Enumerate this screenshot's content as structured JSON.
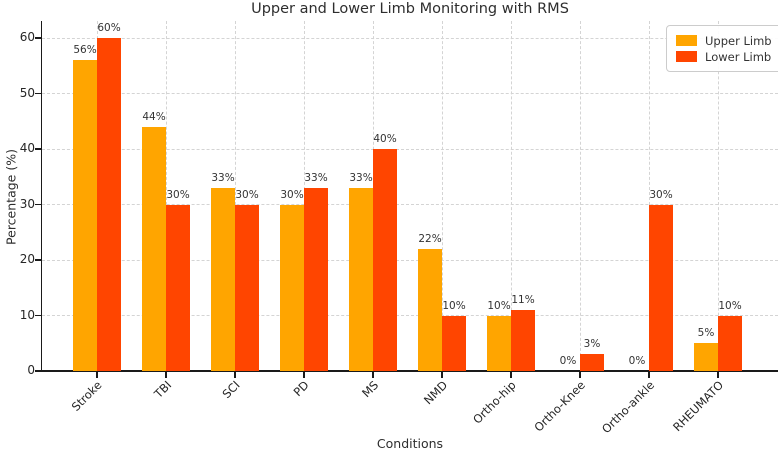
{
  "chart_data": {
    "type": "bar",
    "title": "Upper and Lower Limb Monitoring with RMS",
    "xlabel": "Conditions",
    "ylabel": "Percentage (%)",
    "categories": [
      "Stroke",
      "TBI",
      "SCI",
      "PD",
      "MS",
      "NMD",
      "Ortho-hip",
      "Ortho-Knee",
      "Ortho-ankle",
      "RHEUMATO"
    ],
    "series": [
      {
        "name": "Upper Limb",
        "color": "#FFA500",
        "values": [
          56,
          44,
          33,
          30,
          33,
          22,
          10,
          0,
          0,
          5
        ]
      },
      {
        "name": "Lower Limb",
        "color": "#FF4500",
        "values": [
          60,
          30,
          30,
          33,
          40,
          10,
          11,
          3,
          30,
          10
        ]
      }
    ],
    "yticks": [
      0,
      10,
      20,
      30,
      40,
      50,
      60
    ],
    "ylim": [
      0,
      63
    ],
    "bar_label_suffix": "%",
    "grid": true,
    "legend_position": "upper right",
    "colors": {
      "grid": "#d4d4d4",
      "spine": "#1a1a1a",
      "text": "#262626"
    }
  }
}
